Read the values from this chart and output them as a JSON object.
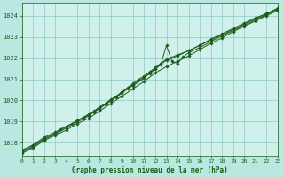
{
  "title": "Graphe pression niveau de la mer (hPa)",
  "background_color": "#b8e8e0",
  "plot_bg_color": "#d0f0ec",
  "line_color": "#1e5c1e",
  "grid_color": "#90c8c0",
  "text_color": "#1a5c1a",
  "xlim": [
    0,
    23
  ],
  "ylim": [
    1017.4,
    1024.6
  ],
  "yticks": [
    1018,
    1019,
    1020,
    1021,
    1022,
    1023,
    1024
  ],
  "xticks": [
    0,
    1,
    2,
    3,
    4,
    5,
    6,
    7,
    8,
    9,
    10,
    11,
    12,
    13,
    14,
    15,
    16,
    17,
    18,
    19,
    20,
    21,
    22,
    23
  ],
  "series1": [
    [
      0,
      1017.6
    ],
    [
      1,
      1017.85
    ],
    [
      2,
      1018.2
    ],
    [
      3,
      1018.45
    ],
    [
      4,
      1018.75
    ],
    [
      5,
      1019.05
    ],
    [
      6,
      1019.3
    ],
    [
      7,
      1019.65
    ],
    [
      8,
      1020.0
    ],
    [
      9,
      1020.4
    ],
    [
      10,
      1020.75
    ],
    [
      11,
      1021.1
    ],
    [
      12,
      1021.5
    ],
    [
      13,
      1021.9
    ],
    [
      14,
      1022.1
    ],
    [
      15,
      1022.35
    ],
    [
      16,
      1022.6
    ],
    [
      17,
      1022.9
    ],
    [
      18,
      1023.15
    ],
    [
      19,
      1023.4
    ],
    [
      20,
      1023.65
    ],
    [
      21,
      1023.9
    ],
    [
      22,
      1024.1
    ],
    [
      23,
      1024.35
    ]
  ],
  "series2": [
    [
      0,
      1017.65
    ],
    [
      1,
      1017.9
    ],
    [
      2,
      1018.25
    ],
    [
      3,
      1018.5
    ],
    [
      3.5,
      1018.65
    ],
    [
      4,
      1018.78
    ],
    [
      4.5,
      1018.9
    ],
    [
      5,
      1019.05
    ],
    [
      5.5,
      1019.2
    ],
    [
      6,
      1019.35
    ],
    [
      6.5,
      1019.5
    ],
    [
      7,
      1019.7
    ],
    [
      7.5,
      1019.85
    ],
    [
      8,
      1020.05
    ],
    [
      8.5,
      1020.2
    ],
    [
      9,
      1020.4
    ],
    [
      9.5,
      1020.6
    ],
    [
      10,
      1020.8
    ],
    [
      10.5,
      1021.0
    ],
    [
      11,
      1021.15
    ],
    [
      11.5,
      1021.35
    ],
    [
      12,
      1021.55
    ],
    [
      12.5,
      1021.75
    ],
    [
      13,
      1021.95
    ],
    [
      14,
      1022.15
    ],
    [
      15,
      1022.35
    ],
    [
      16,
      1022.6
    ],
    [
      17,
      1022.85
    ],
    [
      18,
      1023.1
    ],
    [
      19,
      1023.35
    ],
    [
      20,
      1023.6
    ],
    [
      21,
      1023.85
    ],
    [
      22,
      1024.1
    ],
    [
      23,
      1024.35
    ]
  ],
  "series3": [
    [
      0,
      1017.55
    ],
    [
      1,
      1017.8
    ],
    [
      2,
      1018.15
    ],
    [
      3,
      1018.4
    ],
    [
      4,
      1018.7
    ],
    [
      5,
      1018.98
    ],
    [
      5.5,
      1019.12
    ],
    [
      6,
      1019.28
    ],
    [
      6.5,
      1019.45
    ],
    [
      7,
      1019.62
    ],
    [
      7.5,
      1019.8
    ],
    [
      8,
      1019.98
    ],
    [
      8.5,
      1020.15
    ],
    [
      9,
      1020.35
    ],
    [
      9.5,
      1020.55
    ],
    [
      10,
      1020.7
    ],
    [
      11,
      1021.05
    ],
    [
      11.5,
      1021.28
    ],
    [
      12,
      1021.48
    ],
    [
      12.5,
      1021.7
    ],
    [
      13,
      1022.6
    ],
    [
      13.5,
      1021.85
    ],
    [
      14,
      1021.75
    ],
    [
      14.5,
      1022.05
    ],
    [
      15,
      1022.25
    ],
    [
      16,
      1022.5
    ],
    [
      17,
      1022.78
    ],
    [
      18,
      1023.05
    ],
    [
      19,
      1023.3
    ],
    [
      20,
      1023.55
    ],
    [
      21,
      1023.8
    ],
    [
      22,
      1024.05
    ],
    [
      23,
      1024.3
    ]
  ],
  "series4": [
    [
      0,
      1017.5
    ],
    [
      1,
      1017.75
    ],
    [
      2,
      1018.1
    ],
    [
      3,
      1018.35
    ],
    [
      4,
      1018.6
    ],
    [
      5,
      1018.9
    ],
    [
      6,
      1019.15
    ],
    [
      7,
      1019.5
    ],
    [
      8,
      1019.85
    ],
    [
      9,
      1020.2
    ],
    [
      10,
      1020.55
    ],
    [
      11,
      1020.9
    ],
    [
      12,
      1021.3
    ],
    [
      13,
      1021.6
    ],
    [
      14,
      1021.85
    ],
    [
      15,
      1022.1
    ],
    [
      16,
      1022.4
    ],
    [
      17,
      1022.7
    ],
    [
      18,
      1022.95
    ],
    [
      19,
      1023.25
    ],
    [
      20,
      1023.5
    ],
    [
      21,
      1023.75
    ],
    [
      22,
      1024.0
    ],
    [
      23,
      1024.25
    ]
  ]
}
